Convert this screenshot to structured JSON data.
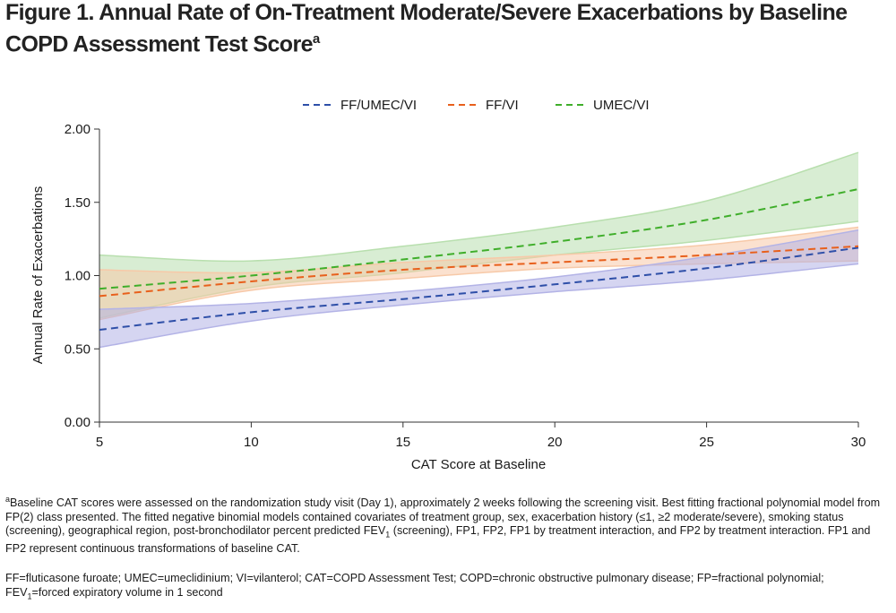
{
  "title": {
    "main": "Figure 1. Annual Rate of On-Treatment Moderate/Severe Exacerbations by Baseline COPD Assessment Test Score",
    "sup": "a"
  },
  "chart_data": {
    "type": "line",
    "xlabel": "CAT Score at Baseline",
    "ylabel": "Annual Rate of Exacerbations",
    "xlim": [
      5,
      30
    ],
    "ylim": [
      0,
      2
    ],
    "x_ticks": [
      "5",
      "10",
      "15",
      "20",
      "25",
      "30"
    ],
    "y_ticks": [
      "0.00",
      "0.50",
      "1.00",
      "1.50",
      "2.00"
    ],
    "legend_position": "top-center",
    "line_style": "dashed",
    "grid": false,
    "series": [
      {
        "name": "FF/UMEC/VI",
        "color": "#2e4fa8",
        "band_color": "#b3b3e6",
        "x": [
          5,
          10,
          15,
          20,
          25,
          30
        ],
        "y": [
          0.63,
          0.75,
          0.84,
          0.94,
          1.05,
          1.19
        ],
        "lower": [
          0.51,
          0.69,
          0.8,
          0.89,
          0.97,
          1.08
        ],
        "upper": [
          0.77,
          0.81,
          0.89,
          0.99,
          1.13,
          1.31
        ]
      },
      {
        "name": "FF/VI",
        "color": "#e8601c",
        "band_color": "#f7c9a8",
        "x": [
          5,
          10,
          15,
          20,
          25,
          30
        ],
        "y": [
          0.86,
          0.96,
          1.04,
          1.09,
          1.14,
          1.2
        ],
        "lower": [
          0.7,
          0.9,
          0.98,
          1.05,
          1.08,
          1.1
        ],
        "upper": [
          1.04,
          1.02,
          1.09,
          1.14,
          1.21,
          1.33
        ]
      },
      {
        "name": "UMEC/VI",
        "color": "#3fae2a",
        "band_color": "#b8dfae",
        "x": [
          5,
          10,
          15,
          20,
          25,
          30
        ],
        "y": [
          0.91,
          1.0,
          1.11,
          1.23,
          1.38,
          1.59
        ],
        "lower": [
          0.71,
          0.92,
          1.02,
          1.14,
          1.24,
          1.37
        ],
        "upper": [
          1.14,
          1.1,
          1.2,
          1.33,
          1.51,
          1.84
        ]
      }
    ]
  },
  "footnote": {
    "sup": "a",
    "part1": "Baseline CAT scores were assessed on the randomization study visit (Day 1), approximately 2 weeks following the screening visit. Best fitting fractional polynomial model from FP(2) class presented. The fitted negative binomial models contained covariates of treatment group, sex, exacerbation history (≤1, ≥2 moderate/severe), smoking status (screening), geographical region, post-bronchodilator percent predicted FEV",
    "sub": "1",
    "part2": " (screening), FP1, FP2, FP1 by treatment interaction, and FP2 by treatment interaction. FP1 and FP2 represent continuous transformations of baseline CAT."
  },
  "abbreviations": {
    "line1": "FF=fluticasone furoate; UMEC=umeclidinium; VI=vilanterol; CAT=COPD Assessment Test; COPD=chronic obstructive pulmonary disease; FP=fractional polynomial;",
    "line2_prefix": "FEV",
    "line2_sub": "1",
    "line2_suffix": "=forced expiratory volume in 1 second"
  }
}
